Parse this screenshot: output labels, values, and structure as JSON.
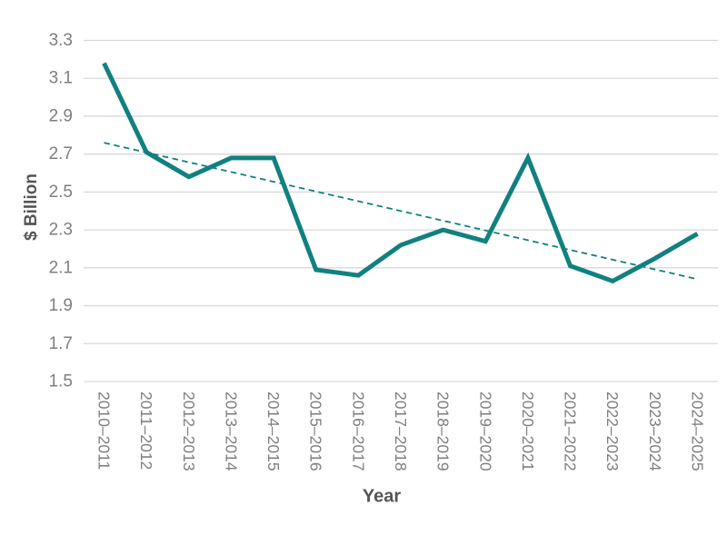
{
  "chart_data": {
    "type": "line",
    "title": "",
    "xlabel": "Year",
    "ylabel": "$ Billion",
    "categories": [
      "2010–2011",
      "2011–2012",
      "2012–2013",
      "2013–2014",
      "2014–2015",
      "2015–2016",
      "2016–2017",
      "2017–2018",
      "2018–2019",
      "2019–2020",
      "2020–2021",
      "2021–2022",
      "2022–2023",
      "2023–2024",
      "2024–2025"
    ],
    "series": [
      {
        "values": [
          3.18,
          2.71,
          2.58,
          2.68,
          2.68,
          2.09,
          2.06,
          2.22,
          2.3,
          2.24,
          2.68,
          2.11,
          2.03,
          2.15,
          2.28
        ],
        "line_style": "solid"
      }
    ],
    "trendline": {
      "start_value": 2.76,
      "end_value": 2.04,
      "line_style": "dashed"
    },
    "ylim": [
      1.5,
      3.3
    ],
    "y_ticks": [
      3.3,
      3.1,
      2.9,
      2.7,
      2.5,
      2.3,
      2.1,
      1.9,
      1.7,
      1.5
    ],
    "grid": "horizontal",
    "legend": "none",
    "x_tick_rotation_deg": 90
  },
  "colors": {
    "series_line": "#118080",
    "trendline": "#118080",
    "gridline": "#D9D9D9",
    "tick_label": "#7F7F7F",
    "axis_title": "#555555",
    "background": "#FFFFFF"
  }
}
